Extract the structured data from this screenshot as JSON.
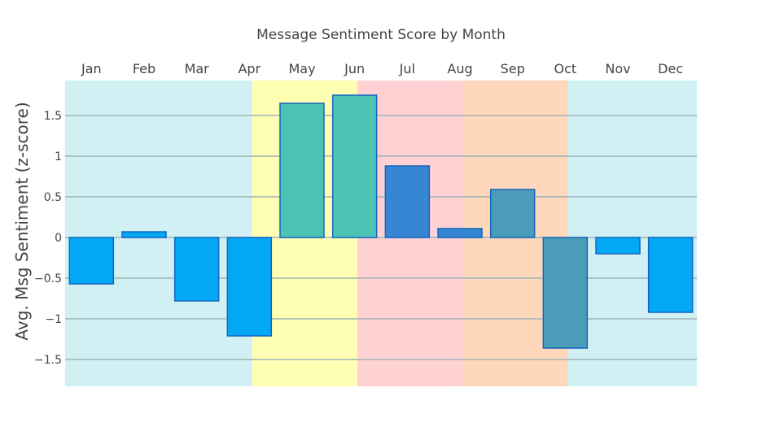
{
  "chart_data": {
    "type": "bar",
    "title": "Message Sentiment Score by Month",
    "xlabel": "",
    "ylabel": "Avg. Msg Sentiment (z-score)",
    "ylim": [
      -1.83,
      1.93
    ],
    "x_axis_position": "top",
    "grid": true,
    "categories": [
      "Jan",
      "Feb",
      "Mar",
      "Apr",
      "May",
      "Jun",
      "Jul",
      "Aug",
      "Sep",
      "Oct",
      "Nov",
      "Dec"
    ],
    "values": [
      -0.57,
      0.07,
      -0.78,
      -1.21,
      1.65,
      1.75,
      0.88,
      0.11,
      0.59,
      -1.36,
      -0.2,
      -0.92
    ],
    "y_ticks": [
      {
        "value": 1.5,
        "label": "1.5"
      },
      {
        "value": 1,
        "label": "1"
      },
      {
        "value": 0.5,
        "label": "0.5"
      },
      {
        "value": 0,
        "label": "0"
      },
      {
        "value": -0.5,
        "label": "−0.5"
      },
      {
        "value": -1,
        "label": "−1"
      },
      {
        "value": -1.5,
        "label": "−1.5"
      }
    ],
    "bar_colors": [
      "#03a9f4",
      "#03a9f4",
      "#03a9f4",
      "#03a9f4",
      "#4cc3b4",
      "#4cc3b4",
      "#3686d3",
      "#3686d3",
      "#4b9cb8",
      "#4b9cb8",
      "#03a9f4",
      "#03a9f4"
    ],
    "bar_border_color": "#1565c0",
    "season_bands": [
      {
        "start": -0.5,
        "end": 3.05,
        "color": "#d0f0f3",
        "opacity": 1
      },
      {
        "start": 3.05,
        "end": 5.05,
        "color": "#ffff99",
        "opacity": 0.75
      },
      {
        "start": 5.05,
        "end": 7.05,
        "color": "#ffb3b5",
        "opacity": 0.6
      },
      {
        "start": 7.05,
        "end": 9.05,
        "color": "#ffc89e",
        "opacity": 0.7
      },
      {
        "start": 9.05,
        "end": 11.5,
        "color": "#d0f0f3",
        "opacity": 1
      }
    ],
    "gridline_color": "#9fb3b8"
  }
}
